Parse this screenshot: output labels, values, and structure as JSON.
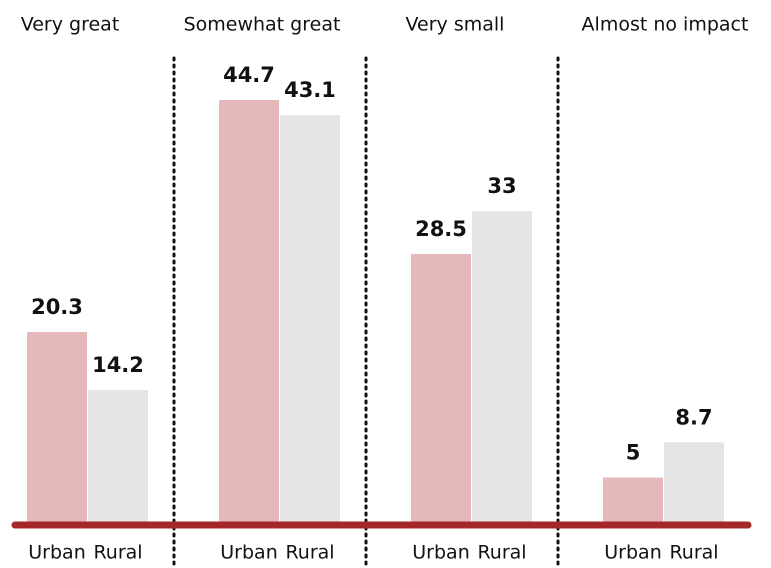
{
  "chart_data": {
    "type": "bar",
    "categories": [
      "Very great",
      "Somewhat great",
      "Very small",
      "Almost no impact"
    ],
    "series": [
      {
        "name": "Urban",
        "color": "#e5b9b9",
        "values": [
          20.3,
          44.7,
          28.5,
          5
        ]
      },
      {
        "name": "Rural",
        "color": "#e5e5e5",
        "values": [
          14.2,
          43.1,
          33,
          8.7
        ]
      }
    ],
    "baseline_color": "#a4282a"
  }
}
